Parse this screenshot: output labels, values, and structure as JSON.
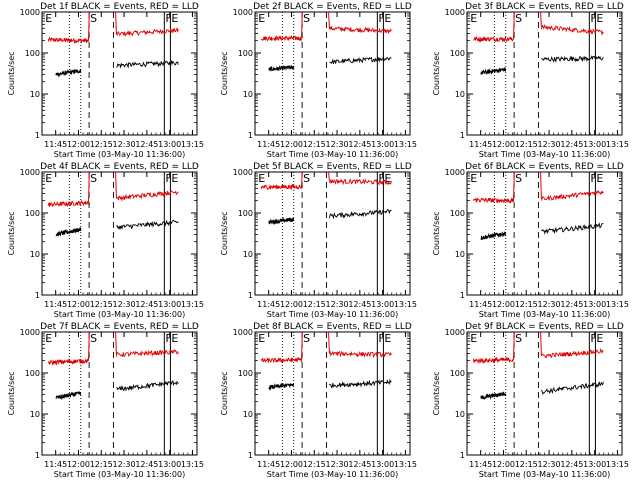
{
  "colors": {
    "events": "#000000",
    "lld": "#dd0000",
    "axes": "#000000",
    "background": "#ffffff"
  },
  "chart_data": [
    {
      "type": "line",
      "title": "Det 1f BLACK = Events, RED = LLD",
      "xlabel": "Start Time (03-May-10 11:36:00)",
      "ylabel": "Counts/sec",
      "xticks": [
        "11:45",
        "12:00",
        "12:15",
        "12:30",
        "12:45",
        "13:00",
        "13:15"
      ],
      "yticks": [
        "1",
        "10",
        "100",
        "1000"
      ],
      "ylim": [
        1,
        1000
      ],
      "yscale": "log",
      "markers": [
        "E",
        "S",
        "F",
        "E"
      ],
      "series": [
        {
          "color": "#dd0000",
          "segments": [
            {
              "x": [
                0.04,
                0.3
              ],
              "y": [
                210,
                200
              ]
            },
            {
              "x": [
                0.48,
                0.88
              ],
              "y": [
                290,
                360
              ]
            }
          ]
        },
        {
          "color": "#000000",
          "segments": [
            {
              "x": [
                0.09,
                0.25
              ],
              "y": [
                30,
                37
              ]
            },
            {
              "x": [
                0.48,
                0.88
              ],
              "y": [
                50,
                58
              ]
            }
          ]
        }
      ]
    },
    {
      "type": "line",
      "title": "Det 2f BLACK = Events, RED = LLD",
      "xlabel": "Start Time (03-May-10 11:36:00)",
      "ylabel": "Counts/sec",
      "xticks": [
        "11:45",
        "12:00",
        "12:15",
        "12:30",
        "12:45",
        "13:00",
        "13:15"
      ],
      "yticks": [
        "1",
        "10",
        "100",
        "1000"
      ],
      "ylim": [
        1,
        1000
      ],
      "yscale": "log",
      "markers": [
        "E",
        "S",
        "F",
        "E"
      ],
      "series": [
        {
          "color": "#dd0000",
          "segments": [
            {
              "x": [
                0.04,
                0.3
              ],
              "y": [
                230,
                230
              ]
            },
            {
              "x": [
                0.48,
                0.88
              ],
              "y": [
                400,
                340
              ]
            }
          ]
        },
        {
          "color": "#000000",
          "segments": [
            {
              "x": [
                0.09,
                0.25
              ],
              "y": [
                40,
                45
              ]
            },
            {
              "x": [
                0.48,
                0.88
              ],
              "y": [
                60,
                75
              ]
            }
          ]
        }
      ]
    },
    {
      "type": "line",
      "title": "Det 3f BLACK = Events, RED = LLD",
      "xlabel": "Start Time (03-May-10 11:36:00)",
      "ylabel": "Counts/sec",
      "xticks": [
        "11:45",
        "12:00",
        "12:15",
        "12:30",
        "12:45",
        "13:00",
        "13:15"
      ],
      "yticks": [
        "1",
        "10",
        "100",
        "1000"
      ],
      "ylim": [
        1,
        1000
      ],
      "yscale": "log",
      "markers": [
        "E",
        "S",
        "F",
        "E"
      ],
      "series": [
        {
          "color": "#dd0000",
          "segments": [
            {
              "x": [
                0.04,
                0.3
              ],
              "y": [
                220,
                220
              ]
            },
            {
              "x": [
                0.48,
                0.88
              ],
              "y": [
                430,
                320
              ]
            }
          ]
        },
        {
          "color": "#000000",
          "segments": [
            {
              "x": [
                0.09,
                0.25
              ],
              "y": [
                33,
                40
              ]
            },
            {
              "x": [
                0.48,
                0.88
              ],
              "y": [
                70,
                75
              ]
            }
          ]
        }
      ]
    },
    {
      "type": "line",
      "title": "Det 4f BLACK = Events, RED = LLD",
      "xlabel": "Start Time (03-May-10 11:36:00)",
      "ylabel": "Counts/sec",
      "xticks": [
        "11:45",
        "12:00",
        "12:15",
        "12:30",
        "12:45",
        "13:00",
        "13:15"
      ],
      "yticks": [
        "1",
        "10",
        "100",
        "1000"
      ],
      "ylim": [
        1,
        1000
      ],
      "yscale": "log",
      "markers": [
        "E",
        "S",
        "F",
        "E"
      ],
      "series": [
        {
          "color": "#dd0000",
          "segments": [
            {
              "x": [
                0.04,
                0.3
              ],
              "y": [
                160,
                180
              ]
            },
            {
              "x": [
                0.48,
                0.88
              ],
              "y": [
                230,
                330
              ]
            }
          ]
        },
        {
          "color": "#000000",
          "segments": [
            {
              "x": [
                0.09,
                0.25
              ],
              "y": [
                30,
                40
              ]
            },
            {
              "x": [
                0.48,
                0.88
              ],
              "y": [
                45,
                60
              ]
            }
          ]
        }
      ]
    },
    {
      "type": "line",
      "title": "Det 5f BLACK = Events, RED = LLD",
      "xlabel": "Start Time (03-May-10 11:36:00)",
      "ylabel": "Counts/sec",
      "xticks": [
        "11:45",
        "12:00",
        "12:15",
        "12:30",
        "12:45",
        "13:00",
        "13:15"
      ],
      "yticks": [
        "1",
        "10",
        "100",
        "1000"
      ],
      "ylim": [
        1,
        1000
      ],
      "yscale": "log",
      "markers": [
        "E",
        "S",
        "F",
        "E"
      ],
      "series": [
        {
          "color": "#dd0000",
          "segments": [
            {
              "x": [
                0.04,
                0.3
              ],
              "y": [
                430,
                440
              ]
            },
            {
              "x": [
                0.48,
                0.88
              ],
              "y": [
                600,
                560
              ]
            }
          ]
        },
        {
          "color": "#000000",
          "segments": [
            {
              "x": [
                0.09,
                0.25
              ],
              "y": [
                60,
                70
              ]
            },
            {
              "x": [
                0.48,
                0.88
              ],
              "y": [
                85,
                110
              ]
            }
          ]
        }
      ]
    },
    {
      "type": "line",
      "title": "Det 6f BLACK = Events, RED = LLD",
      "xlabel": "Start Time (03-May-10 11:36:00)",
      "ylabel": "Counts/sec",
      "xticks": [
        "11:45",
        "12:00",
        "12:15",
        "12:30",
        "12:45",
        "13:00",
        "13:15"
      ],
      "yticks": [
        "1",
        "10",
        "100",
        "1000"
      ],
      "ylim": [
        1,
        1000
      ],
      "yscale": "log",
      "markers": [
        "E",
        "S",
        "F",
        "E"
      ],
      "series": [
        {
          "color": "#dd0000",
          "segments": [
            {
              "x": [
                0.04,
                0.3
              ],
              "y": [
                210,
                200
              ]
            },
            {
              "x": [
                0.48,
                0.88
              ],
              "y": [
                220,
                330
              ]
            }
          ]
        },
        {
          "color": "#000000",
          "segments": [
            {
              "x": [
                0.09,
                0.25
              ],
              "y": [
                25,
                32
              ]
            },
            {
              "x": [
                0.48,
                0.88
              ],
              "y": [
                35,
                50
              ]
            }
          ]
        }
      ]
    },
    {
      "type": "line",
      "title": "Det 7f BLACK = Events, RED = LLD",
      "xlabel": "Start Time (03-May-10 11:36:00)",
      "ylabel": "Counts/sec",
      "xticks": [
        "11:45",
        "12:00",
        "12:15",
        "12:30",
        "12:45",
        "13:00",
        "13:15"
      ],
      "yticks": [
        "1",
        "10",
        "100",
        "1000"
      ],
      "ylim": [
        1,
        1000
      ],
      "yscale": "log",
      "markers": [
        "E",
        "S",
        "F",
        "E"
      ],
      "series": [
        {
          "color": "#dd0000",
          "segments": [
            {
              "x": [
                0.04,
                0.3
              ],
              "y": [
                180,
                200
              ]
            },
            {
              "x": [
                0.48,
                0.88
              ],
              "y": [
                280,
                330
              ]
            }
          ]
        },
        {
          "color": "#000000",
          "segments": [
            {
              "x": [
                0.09,
                0.25
              ],
              "y": [
                25,
                32
              ]
            },
            {
              "x": [
                0.48,
                0.88
              ],
              "y": [
                40,
                60
              ]
            }
          ]
        }
      ]
    },
    {
      "type": "line",
      "title": "Det 8f BLACK = Events, RED = LLD",
      "xlabel": "Start Time (03-May-10 11:36:00)",
      "ylabel": "Counts/sec",
      "xticks": [
        "11:45",
        "12:00",
        "12:15",
        "12:30",
        "12:45",
        "13:00",
        "13:15"
      ],
      "yticks": [
        "1",
        "10",
        "100",
        "1000"
      ],
      "ylim": [
        1,
        1000
      ],
      "yscale": "log",
      "markers": [
        "E",
        "S",
        "F",
        "E"
      ],
      "series": [
        {
          "color": "#dd0000",
          "segments": [
            {
              "x": [
                0.04,
                0.3
              ],
              "y": [
                200,
                210
              ]
            },
            {
              "x": [
                0.48,
                0.88
              ],
              "y": [
                300,
                280
              ]
            }
          ]
        },
        {
          "color": "#000000",
          "segments": [
            {
              "x": [
                0.09,
                0.25
              ],
              "y": [
                45,
                52
              ]
            },
            {
              "x": [
                0.48,
                0.88
              ],
              "y": [
                50,
                60
              ]
            }
          ]
        }
      ]
    },
    {
      "type": "line",
      "title": "Det 9f BLACK = Events, RED = LLD",
      "xlabel": "Start Time (03-May-10 11:36:00)",
      "ylabel": "Counts/sec",
      "xticks": [
        "11:45",
        "12:00",
        "12:15",
        "12:30",
        "12:45",
        "13:00",
        "13:15"
      ],
      "yticks": [
        "1",
        "10",
        "100",
        "1000"
      ],
      "ylim": [
        1,
        1000
      ],
      "yscale": "log",
      "markers": [
        "E",
        "S",
        "F",
        "E"
      ],
      "series": [
        {
          "color": "#dd0000",
          "segments": [
            {
              "x": [
                0.04,
                0.3
              ],
              "y": [
                200,
                210
              ]
            },
            {
              "x": [
                0.48,
                0.88
              ],
              "y": [
                260,
                340
              ]
            }
          ]
        },
        {
          "color": "#000000",
          "segments": [
            {
              "x": [
                0.09,
                0.25
              ],
              "y": [
                25,
                32
              ]
            },
            {
              "x": [
                0.48,
                0.88
              ],
              "y": [
                35,
                55
              ]
            }
          ]
        }
      ]
    }
  ]
}
